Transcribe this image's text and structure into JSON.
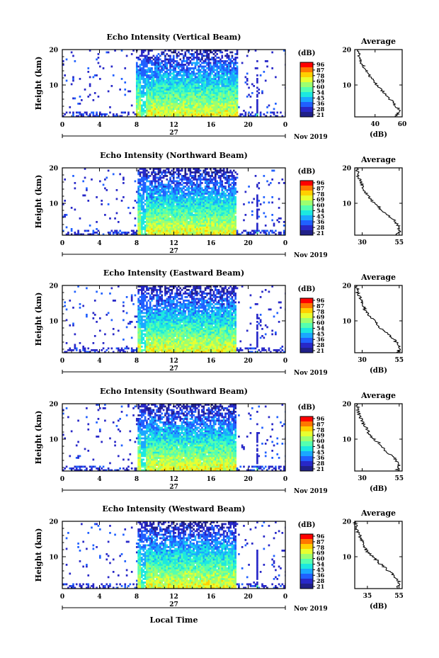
{
  "page": {
    "month_label": "Nov 2019",
    "day_label": "27",
    "local_time_label": "Local Time"
  },
  "colorbar": {
    "unit": "(dB)",
    "ticks": [
      "96",
      "87",
      "78",
      "69",
      "60",
      "54",
      "45",
      "36",
      "28",
      "21"
    ],
    "colors": [
      "#ff0000",
      "#ff7700",
      "#ffd000",
      "#e8ff30",
      "#9dff70",
      "#55ffb0",
      "#1ce8e0",
      "#1aa8ff",
      "#2060ff",
      "#2828c8",
      "#202088"
    ]
  },
  "chart_data": [
    {
      "type": "heatmap",
      "title": "Echo Intensity (Vertical Beam)",
      "ylabel": "Height (km)",
      "xlabel": "",
      "x_ticks": [
        "0",
        "4",
        "8",
        "12",
        "16",
        "20",
        "0"
      ],
      "xlim": [
        0,
        24
      ],
      "y_ticks": [
        "20",
        "10"
      ],
      "ylim": [
        1,
        20
      ],
      "zlim": [
        21,
        96
      ],
      "colorbar_unit": "(dB)",
      "gap_hours": [
        [
          8.3,
          8.9
        ]
      ],
      "data_hours": [
        [
          7.9,
          18.8
        ]
      ],
      "average": {
        "title": "Average",
        "xlabel": "(dB)",
        "x_ticks": [
          "40",
          "60"
        ],
        "xlim": [
          25,
          60
        ],
        "y_ticks": [
          "20",
          "10"
        ],
        "profile": [
          [
            1,
            55
          ],
          [
            2,
            57
          ],
          [
            3,
            58
          ],
          [
            4,
            55
          ],
          [
            5,
            54
          ],
          [
            6,
            51
          ],
          [
            7,
            49
          ],
          [
            8,
            46
          ],
          [
            9,
            44
          ],
          [
            10,
            41
          ],
          [
            11,
            39
          ],
          [
            12,
            37
          ],
          [
            13,
            35
          ],
          [
            14,
            34
          ],
          [
            15,
            32
          ],
          [
            16,
            30
          ],
          [
            17,
            29
          ],
          [
            18,
            28
          ],
          [
            19,
            28
          ],
          [
            20,
            27
          ]
        ]
      }
    },
    {
      "type": "heatmap",
      "title": "Echo Intensity (Northward Beam)",
      "ylabel": "Height (km)",
      "xlabel": "",
      "x_ticks": [
        "0",
        "4",
        "8",
        "12",
        "16",
        "20",
        "0"
      ],
      "xlim": [
        0,
        24
      ],
      "y_ticks": [
        "20",
        "10"
      ],
      "ylim": [
        1,
        20
      ],
      "zlim": [
        21,
        96
      ],
      "colorbar_unit": "(dB)",
      "gap_hours": [
        [
          8.4,
          8.9
        ]
      ],
      "data_hours": [
        [
          8.0,
          18.6
        ]
      ],
      "average": {
        "title": "Average",
        "xlabel": "",
        "x_ticks": [
          "30",
          "55"
        ],
        "xlim": [
          25,
          57
        ],
        "y_ticks": [
          "20",
          "10"
        ],
        "profile": [
          [
            1,
            53
          ],
          [
            2,
            55
          ],
          [
            3,
            55
          ],
          [
            4,
            54
          ],
          [
            5,
            52
          ],
          [
            6,
            49
          ],
          [
            7,
            46
          ],
          [
            8,
            43
          ],
          [
            9,
            41
          ],
          [
            10,
            38
          ],
          [
            11,
            36
          ],
          [
            12,
            34
          ],
          [
            13,
            32
          ],
          [
            14,
            31
          ],
          [
            15,
            30
          ],
          [
            16,
            29
          ],
          [
            17,
            28
          ],
          [
            18,
            27
          ],
          [
            19,
            27
          ],
          [
            20,
            26
          ]
        ]
      }
    },
    {
      "type": "heatmap",
      "title": "Echo Intensity (Eastward Beam)",
      "ylabel": "Height (km)",
      "xlabel": "",
      "x_ticks": [
        "0",
        "4",
        "8",
        "12",
        "16",
        "20",
        "0"
      ],
      "xlim": [
        0,
        24
      ],
      "y_ticks": [
        "20",
        "10"
      ],
      "ylim": [
        1,
        20
      ],
      "zlim": [
        21,
        96
      ],
      "colorbar_unit": "(dB)",
      "gap_hours": [
        [
          8.4,
          8.9
        ]
      ],
      "data_hours": [
        [
          8.0,
          18.6
        ]
      ],
      "average": {
        "title": "Average",
        "xlabel": "(dB)",
        "x_ticks": [
          "30",
          "55"
        ],
        "xlim": [
          25,
          57
        ],
        "y_ticks": [
          "20",
          "10"
        ],
        "profile": [
          [
            1,
            54
          ],
          [
            2,
            55
          ],
          [
            3,
            55
          ],
          [
            4,
            53
          ],
          [
            5,
            51
          ],
          [
            6,
            48
          ],
          [
            7,
            45
          ],
          [
            8,
            42
          ],
          [
            9,
            40
          ],
          [
            10,
            38
          ],
          [
            11,
            36
          ],
          [
            12,
            34
          ],
          [
            13,
            32
          ],
          [
            14,
            31
          ],
          [
            15,
            30
          ],
          [
            16,
            29
          ],
          [
            17,
            28
          ],
          [
            18,
            27
          ],
          [
            19,
            27
          ],
          [
            20,
            26
          ]
        ]
      }
    },
    {
      "type": "heatmap",
      "title": "Echo Intensity (Southward Beam)",
      "ylabel": "Height (km)",
      "xlabel": "",
      "x_ticks": [
        "0",
        "4",
        "8",
        "12",
        "16",
        "20",
        "0"
      ],
      "xlim": [
        0,
        24
      ],
      "y_ticks": [
        "20",
        "10"
      ],
      "ylim": [
        1,
        20
      ],
      "zlim": [
        21,
        96
      ],
      "colorbar_unit": "(dB)",
      "gap_hours": [
        [
          8.4,
          8.9
        ]
      ],
      "data_hours": [
        [
          8.0,
          18.6
        ]
      ],
      "average": {
        "title": "Average",
        "xlabel": "(dB)",
        "x_ticks": [
          "30",
          "55"
        ],
        "xlim": [
          25,
          57
        ],
        "y_ticks": [
          "20",
          "10"
        ],
        "profile": [
          [
            1,
            53
          ],
          [
            2,
            55
          ],
          [
            3,
            55
          ],
          [
            4,
            53
          ],
          [
            5,
            51
          ],
          [
            6,
            48
          ],
          [
            7,
            45
          ],
          [
            8,
            43
          ],
          [
            9,
            41
          ],
          [
            10,
            38
          ],
          [
            11,
            36
          ],
          [
            12,
            34
          ],
          [
            13,
            33
          ],
          [
            14,
            31
          ],
          [
            15,
            30
          ],
          [
            16,
            29
          ],
          [
            17,
            28
          ],
          [
            18,
            27
          ],
          [
            19,
            27
          ],
          [
            20,
            26
          ]
        ]
      }
    },
    {
      "type": "heatmap",
      "title": "Echo Intensity (Westward Beam)",
      "ylabel": "Height (km)",
      "xlabel": "",
      "x_ticks": [
        "0",
        "4",
        "8",
        "12",
        "16",
        "20",
        "0"
      ],
      "xlim": [
        0,
        24
      ],
      "y_ticks": [
        "20",
        "10"
      ],
      "ylim": [
        1,
        20
      ],
      "zlim": [
        21,
        96
      ],
      "colorbar_unit": "(dB)",
      "gap_hours": [
        [
          8.4,
          8.9
        ]
      ],
      "data_hours": [
        [
          8.0,
          18.6
        ]
      ],
      "average": {
        "title": "Average",
        "xlabel": "(dB)",
        "x_ticks": [
          "35",
          "55"
        ],
        "xlim": [
          27,
          57
        ],
        "y_ticks": [
          "20",
          "10"
        ],
        "profile": [
          [
            1,
            54
          ],
          [
            2,
            55
          ],
          [
            3,
            55
          ],
          [
            4,
            53
          ],
          [
            5,
            51
          ],
          [
            6,
            48
          ],
          [
            7,
            46
          ],
          [
            8,
            43
          ],
          [
            9,
            41
          ],
          [
            10,
            38
          ],
          [
            11,
            36
          ],
          [
            12,
            34
          ],
          [
            13,
            33
          ],
          [
            14,
            32
          ],
          [
            15,
            31
          ],
          [
            16,
            30
          ],
          [
            17,
            29
          ],
          [
            18,
            28
          ],
          [
            19,
            28
          ],
          [
            20,
            27
          ]
        ]
      }
    }
  ]
}
